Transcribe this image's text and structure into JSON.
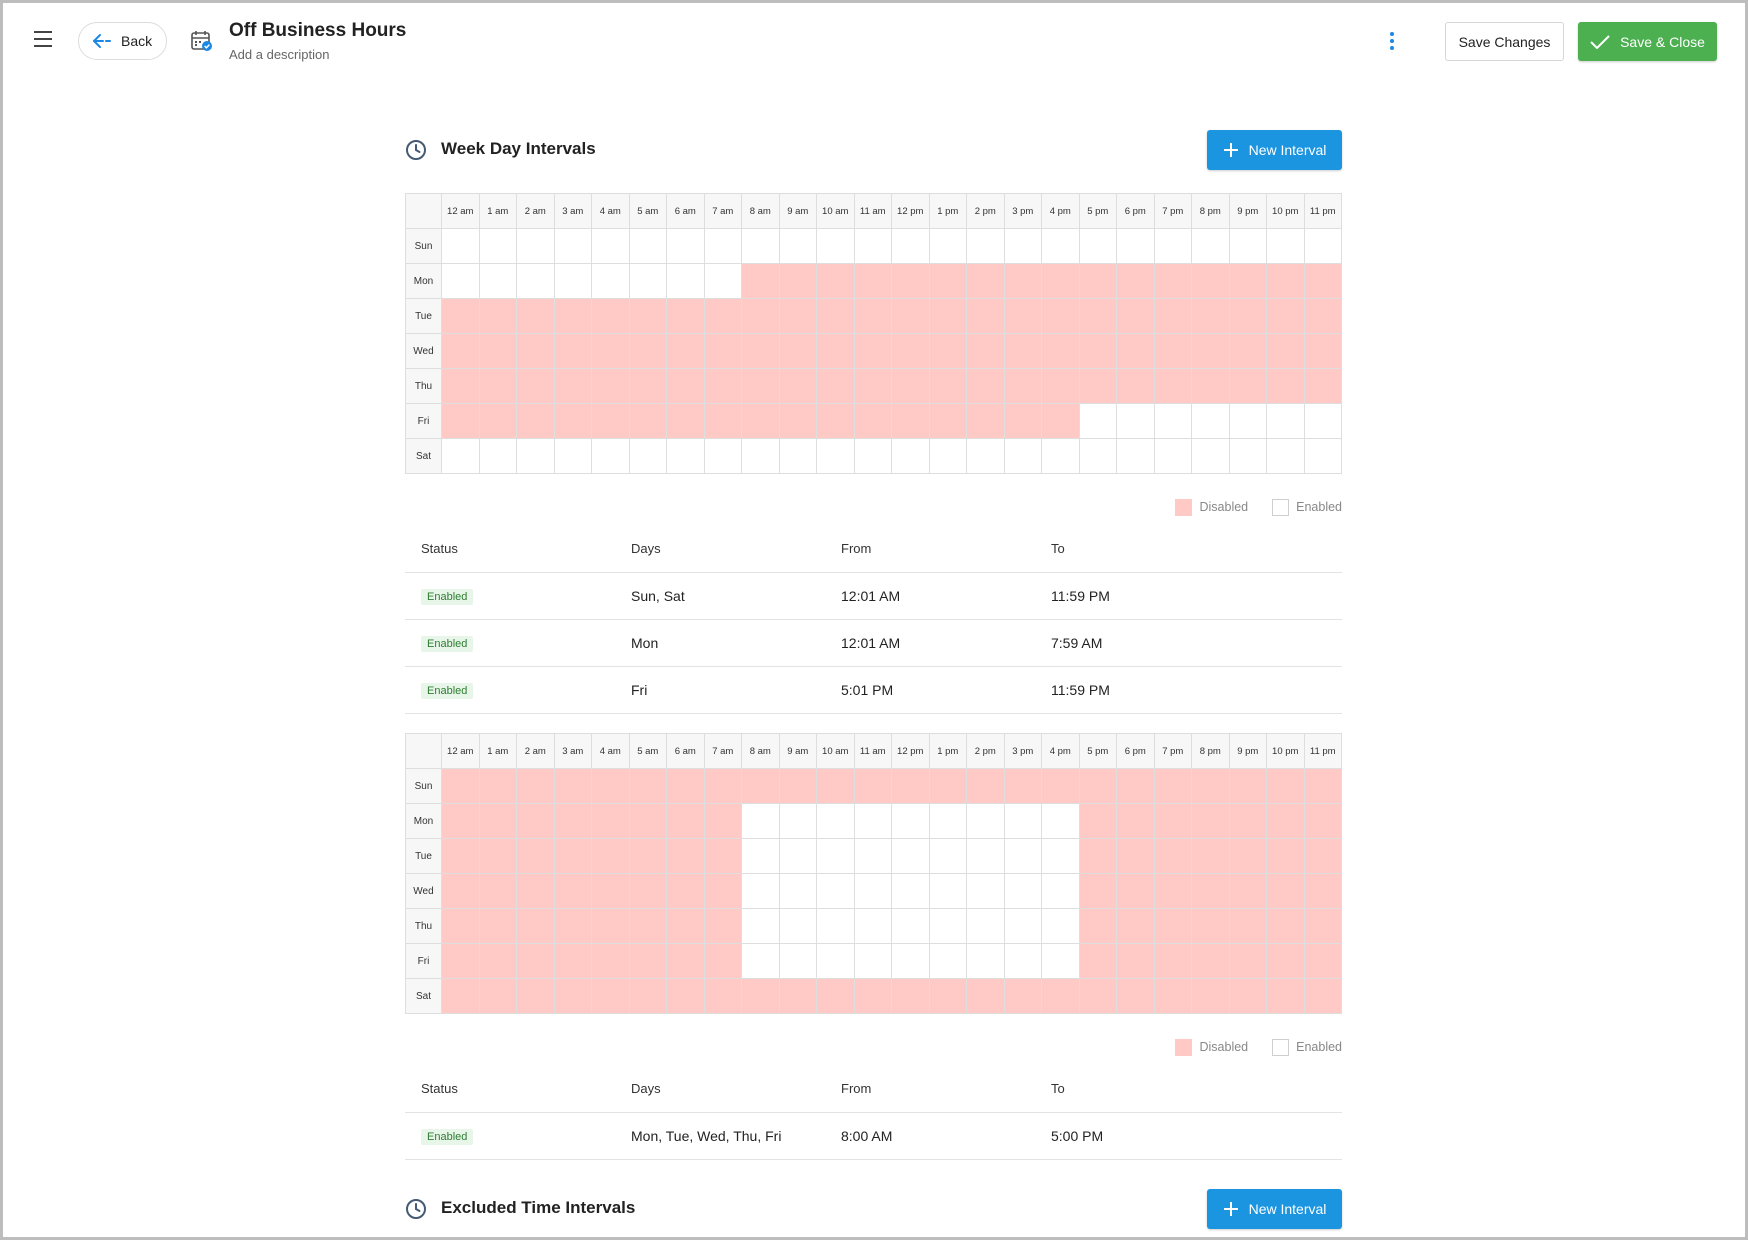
{
  "header": {
    "back_label": "Back",
    "title": "Off Business Hours",
    "description": "Add a description",
    "save_changes_label": "Save Changes",
    "save_close_label": "Save & Close"
  },
  "week_section": {
    "title": "Week Day Intervals",
    "new_interval_label": "New Interval"
  },
  "excluded_section": {
    "title": "Excluded Time Intervals",
    "new_interval_label": "New Interval"
  },
  "hours": [
    "12 am",
    "1 am",
    "2 am",
    "3 am",
    "4 am",
    "5 am",
    "6 am",
    "7 am",
    "8 am",
    "9 am",
    "10 am",
    "11 am",
    "12 pm",
    "1 pm",
    "2 pm",
    "3 pm",
    "4 pm",
    "5 pm",
    "6 pm",
    "7 pm",
    "8 pm",
    "9 pm",
    "10 pm",
    "11 pm"
  ],
  "days": [
    "Sun",
    "Mon",
    "Tue",
    "Wed",
    "Thu",
    "Fri",
    "Sat"
  ],
  "legend": {
    "disabled": "Disabled",
    "enabled": "Enabled"
  },
  "colors": {
    "disabled": "#ffc9c6",
    "enabled": "#ffffff",
    "primary": "#1b95e0",
    "success": "#4caf50"
  },
  "table_headers": {
    "status": "Status",
    "days": "Days",
    "from": "From",
    "to": "To"
  },
  "group1": {
    "disabled_ranges": [
      {
        "day": "Mon",
        "start_hour": 8,
        "end_hour": 24
      },
      {
        "day": "Tue",
        "start_hour": 0,
        "end_hour": 24
      },
      {
        "day": "Wed",
        "start_hour": 0,
        "end_hour": 24
      },
      {
        "day": "Thu",
        "start_hour": 0,
        "end_hour": 24
      },
      {
        "day": "Fri",
        "start_hour": 0,
        "end_hour": 17
      }
    ],
    "rows": [
      {
        "status": "Enabled",
        "days": "Sun, Sat",
        "from": "12:01 AM",
        "to": "11:59 PM"
      },
      {
        "status": "Enabled",
        "days": "Mon",
        "from": "12:01 AM",
        "to": "7:59 AM"
      },
      {
        "status": "Enabled",
        "days": "Fri",
        "from": "5:01 PM",
        "to": "11:59 PM"
      }
    ]
  },
  "group2": {
    "disabled_ranges": [
      {
        "day": "Sun",
        "start_hour": 0,
        "end_hour": 24
      },
      {
        "day": "Mon",
        "start_hour": 0,
        "end_hour": 8
      },
      {
        "day": "Mon",
        "start_hour": 17,
        "end_hour": 24
      },
      {
        "day": "Tue",
        "start_hour": 0,
        "end_hour": 8
      },
      {
        "day": "Tue",
        "start_hour": 17,
        "end_hour": 24
      },
      {
        "day": "Wed",
        "start_hour": 0,
        "end_hour": 8
      },
      {
        "day": "Wed",
        "start_hour": 17,
        "end_hour": 24
      },
      {
        "day": "Thu",
        "start_hour": 0,
        "end_hour": 8
      },
      {
        "day": "Thu",
        "start_hour": 17,
        "end_hour": 24
      },
      {
        "day": "Fri",
        "start_hour": 0,
        "end_hour": 8
      },
      {
        "day": "Fri",
        "start_hour": 17,
        "end_hour": 24
      },
      {
        "day": "Sat",
        "start_hour": 0,
        "end_hour": 24
      }
    ],
    "rows": [
      {
        "status": "Enabled",
        "days": "Mon, Tue, Wed, Thu, Fri",
        "from": "8:00 AM",
        "to": "5:00 PM"
      }
    ]
  }
}
